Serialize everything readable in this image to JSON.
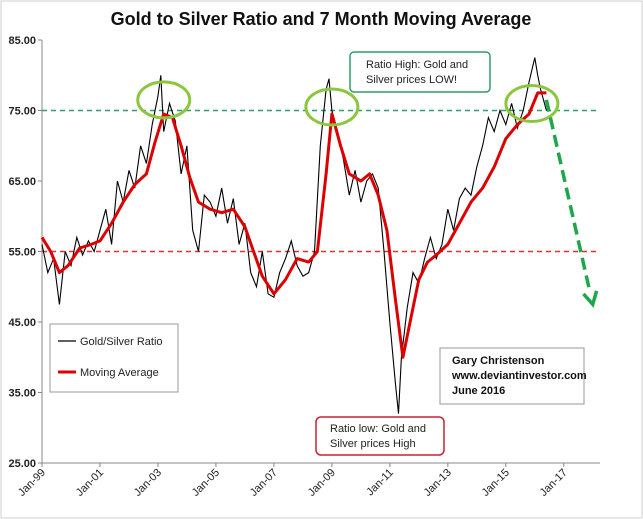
{
  "chart_data": {
    "type": "line",
    "title": "Gold to Silver Ratio and 7 Month Moving Average",
    "xlabel": "",
    "ylabel": "",
    "xlim": [
      1999.0,
      2018.25
    ],
    "ylim": [
      25,
      85
    ],
    "y_ticks": [
      "25.00",
      "35.00",
      "45.00",
      "55.00",
      "65.00",
      "75.00",
      "85.00"
    ],
    "x_ticks": [
      "Jan-99",
      "Jan-01",
      "Jan-03",
      "Jan-05",
      "Jan-07",
      "Jan-09",
      "Jan-11",
      "Jan-13",
      "Jan-15",
      "Jan-17"
    ],
    "x_tick_years": [
      1999,
      2001,
      2003,
      2005,
      2007,
      2009,
      2011,
      2013,
      2015,
      2017
    ],
    "grid": false,
    "legend_position": "bottom-left",
    "series": [
      {
        "name": "Gold/Silver Ratio",
        "color": "#000000",
        "x": [
          1999.0,
          1999.2,
          1999.4,
          1999.6,
          1999.8,
          2000.0,
          2000.2,
          2000.4,
          2000.6,
          2000.8,
          2001.0,
          2001.2,
          2001.4,
          2001.6,
          2001.8,
          2002.0,
          2002.2,
          2002.4,
          2002.6,
          2002.8,
          2003.0,
          2003.1,
          2003.2,
          2003.4,
          2003.6,
          2003.8,
          2004.0,
          2004.2,
          2004.4,
          2004.6,
          2004.8,
          2005.0,
          2005.2,
          2005.4,
          2005.6,
          2005.8,
          2006.0,
          2006.2,
          2006.4,
          2006.6,
          2006.8,
          2007.0,
          2007.2,
          2007.4,
          2007.6,
          2007.8,
          2008.0,
          2008.2,
          2008.4,
          2008.6,
          2008.8,
          2008.9,
          2009.0,
          2009.2,
          2009.4,
          2009.6,
          2009.8,
          2010.0,
          2010.2,
          2010.4,
          2010.6,
          2010.8,
          2011.0,
          2011.2,
          2011.3,
          2011.4,
          2011.6,
          2011.8,
          2012.0,
          2012.2,
          2012.4,
          2012.6,
          2012.8,
          2013.0,
          2013.2,
          2013.4,
          2013.6,
          2013.8,
          2014.0,
          2014.2,
          2014.4,
          2014.6,
          2014.8,
          2015.0,
          2015.2,
          2015.4,
          2015.6,
          2015.8,
          2016.0,
          2016.1,
          2016.2,
          2016.4
        ],
        "values": [
          56.0,
          52.0,
          54.0,
          47.5,
          55.0,
          53.0,
          57.0,
          54.5,
          56.5,
          55.0,
          58.0,
          61.0,
          56.0,
          65.0,
          62.0,
          66.5,
          64.0,
          70.0,
          67.5,
          73.0,
          77.0,
          80.0,
          72.0,
          76.0,
          73.5,
          66.0,
          70.0,
          58.0,
          55.0,
          63.0,
          62.0,
          60.0,
          64.0,
          59.0,
          62.5,
          56.0,
          59.0,
          52.0,
          50.0,
          55.0,
          49.0,
          48.5,
          52.0,
          54.0,
          56.5,
          53.0,
          51.5,
          52.0,
          55.0,
          70.0,
          78.0,
          79.5,
          75.0,
          72.0,
          68.0,
          63.0,
          66.5,
          62.0,
          65.0,
          66.0,
          64.0,
          55.0,
          45.0,
          36.0,
          32.0,
          40.0,
          47.0,
          52.0,
          50.5,
          54.0,
          57.0,
          54.0,
          56.0,
          61.0,
          58.0,
          62.5,
          64.0,
          63.0,
          67.0,
          70.0,
          74.0,
          72.0,
          75.0,
          73.0,
          76.0,
          72.5,
          75.0,
          79.0,
          82.5,
          80.0,
          78.0,
          75.0
        ]
      },
      {
        "name": "Moving Average",
        "color": "#dd0000",
        "x": [
          1999.0,
          1999.3,
          1999.6,
          1999.9,
          2000.3,
          2000.7,
          2001.0,
          2001.4,
          2001.8,
          2002.2,
          2002.6,
          2002.9,
          2003.2,
          2003.5,
          2003.8,
          2004.1,
          2004.4,
          2004.8,
          2005.2,
          2005.6,
          2006.0,
          2006.3,
          2006.6,
          2007.0,
          2007.4,
          2007.8,
          2008.2,
          2008.5,
          2008.8,
          2009.0,
          2009.3,
          2009.6,
          2010.0,
          2010.3,
          2010.6,
          2010.9,
          2011.2,
          2011.45,
          2011.7,
          2012.0,
          2012.3,
          2012.6,
          2013.0,
          2013.4,
          2013.8,
          2014.2,
          2014.6,
          2015.0,
          2015.4,
          2015.8,
          2016.1,
          2016.4
        ],
        "values": [
          57.0,
          55.0,
          52.0,
          53.0,
          55.5,
          56.0,
          56.5,
          59.0,
          62.0,
          64.5,
          66.0,
          70.5,
          74.5,
          74.0,
          70.0,
          65.5,
          62.0,
          61.0,
          60.5,
          61.0,
          58.5,
          55.0,
          51.5,
          49.0,
          51.0,
          54.0,
          53.5,
          55.0,
          66.0,
          74.5,
          70.0,
          66.0,
          65.0,
          66.0,
          63.0,
          58.0,
          48.0,
          40.0,
          45.0,
          51.0,
          53.5,
          54.5,
          56.0,
          59.0,
          62.0,
          64.0,
          67.0,
          71.0,
          73.0,
          74.5,
          77.5,
          77.5
        ]
      }
    ],
    "reference_lines": [
      {
        "value": 75,
        "color": "#2e9e6a",
        "style": "dashed"
      },
      {
        "value": 55,
        "color": "#dd3333",
        "style": "dashed"
      }
    ],
    "annotations": {
      "high_note_line1": "Ratio High:  Gold and",
      "high_note_line2": "Silver prices LOW!",
      "low_note_line1": "Ratio low:  Gold and",
      "low_note_line2": "Silver prices High",
      "credit_line1": "Gary Christenson",
      "credit_line2": "www.deviantinvestor.com",
      "credit_line3": "June 2016",
      "circle_color": "#8cc63f",
      "arrow_color": "#1fa54a",
      "circles_at": [
        [
          2003.2,
          76.5
        ],
        [
          2009.0,
          75.5
        ],
        [
          2015.9,
          76.0
        ]
      ],
      "arrow_from": [
        2016.4,
        76.5
      ],
      "arrow_to": [
        2018.0,
        47.5
      ]
    }
  }
}
